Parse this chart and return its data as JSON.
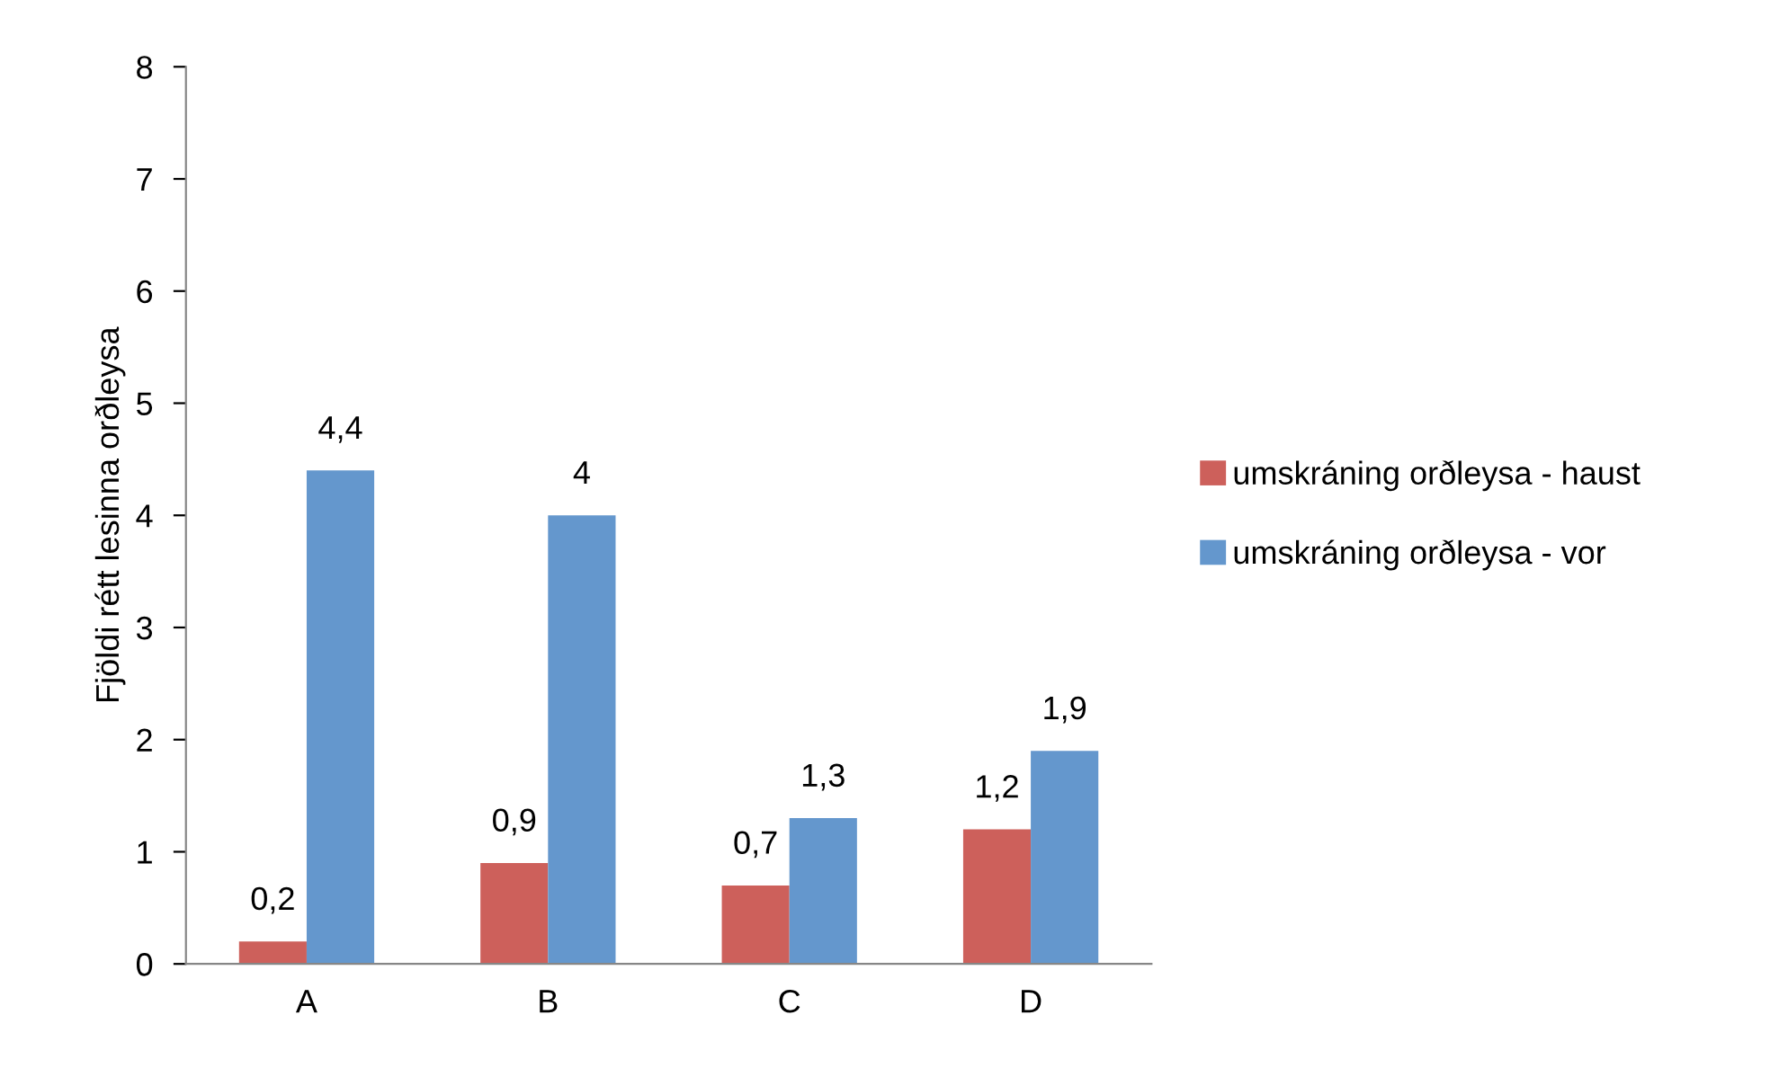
{
  "chart_data": {
    "type": "bar",
    "ylabel": "Fjöldi rétt lesinna orðleysa",
    "categories": [
      "A",
      "B",
      "C",
      "D"
    ],
    "series": [
      {
        "name": "umskráning orðleysa - haust",
        "color": "#cd605b",
        "values": [
          0.2,
          0.9,
          0.7,
          1.2
        ],
        "value_labels": [
          "0,2",
          "0,9",
          "0,7",
          "1,2"
        ]
      },
      {
        "name": "umskráning orðleysa - vor",
        "color": "#6497cd",
        "values": [
          4.4,
          4,
          1.3,
          1.9
        ],
        "value_labels": [
          "4,4",
          "4",
          "1,3",
          "1,9"
        ]
      }
    ],
    "ylim": [
      0,
      8
    ],
    "yticks": [
      0,
      1,
      2,
      3,
      4,
      5,
      6,
      7,
      8
    ],
    "grid": false,
    "legend": "right"
  }
}
